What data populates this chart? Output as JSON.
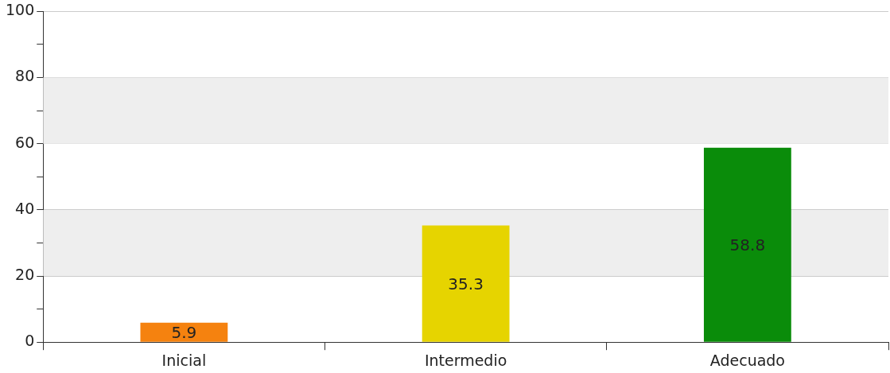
{
  "chart_data": {
    "type": "bar",
    "categories": [
      "Inicial",
      "Intermedio",
      "Adecuado"
    ],
    "values": [
      5.9,
      35.3,
      58.8
    ],
    "colors": [
      "#f5820f",
      "#e6d400",
      "#0a8c0a"
    ],
    "ylim": [
      0,
      100
    ],
    "yticks": [
      0,
      {
        "value": 10,
        "label": null
      },
      20,
      {
        "value": 30,
        "label": null
      },
      40,
      {
        "value": 50,
        "label": null
      },
      60,
      {
        "value": 70,
        "label": null
      },
      80,
      {
        "value": 90,
        "label": null
      },
      100
    ],
    "bands": [
      {
        "axis": "y",
        "from": 20,
        "to": 40,
        "color": "#eeeeee"
      },
      {
        "axis": "y",
        "from": 60,
        "to": 80,
        "color": "#eeeeee"
      }
    ],
    "grid": "y",
    "data_labels": true,
    "legend": false
  }
}
